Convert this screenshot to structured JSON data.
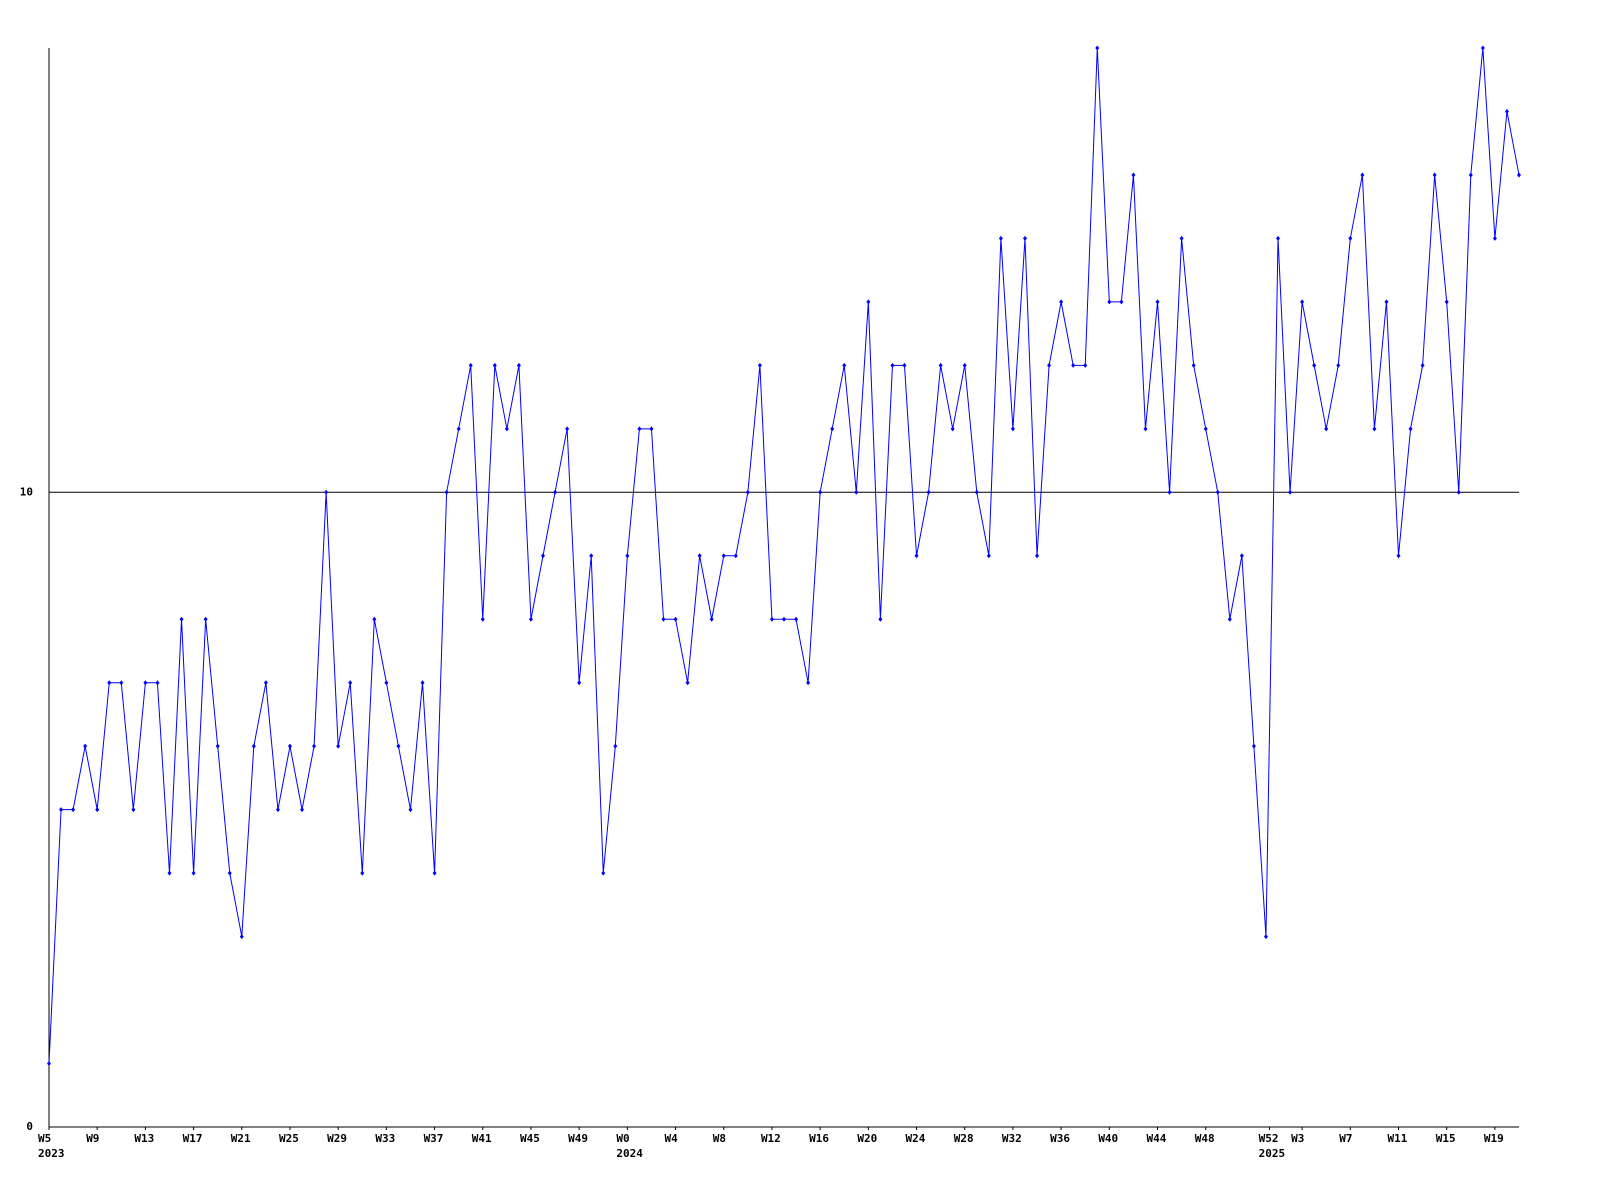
{
  "chart_data": {
    "type": "line",
    "x": [
      0,
      1,
      2,
      3,
      4,
      5,
      6,
      7,
      8,
      9,
      10,
      11,
      12,
      13,
      14,
      15,
      16,
      17,
      18,
      19,
      20,
      21,
      22,
      23,
      24,
      25,
      26,
      27,
      28,
      29,
      30,
      31,
      32,
      33,
      34,
      35,
      36,
      37,
      38,
      39,
      40,
      41,
      42,
      43,
      44,
      45,
      46,
      47,
      48,
      49,
      50,
      51,
      52,
      53,
      54,
      55,
      56,
      57,
      58,
      59,
      60,
      61,
      62,
      63,
      64,
      65,
      66,
      67,
      68,
      69,
      70,
      71,
      72,
      73,
      74,
      75,
      76,
      77,
      78,
      79,
      80,
      81,
      82,
      83,
      84,
      85,
      86,
      87,
      88,
      89,
      90,
      91,
      92,
      93,
      94,
      95,
      96,
      97,
      98,
      99,
      100,
      101,
      102,
      103,
      104,
      105,
      106,
      107,
      108,
      109,
      110,
      111,
      112,
      113,
      114,
      115,
      116,
      117,
      118,
      119,
      120,
      121,
      122
    ],
    "series": [
      {
        "color": "#0000ff",
        "values": [
          1,
          5,
          5,
          6,
          5,
          7,
          7,
          5,
          7,
          7,
          4,
          8,
          4,
          8,
          6,
          4,
          3,
          6,
          7,
          5,
          6,
          5,
          6,
          10,
          6,
          7,
          4,
          8,
          7,
          6,
          5,
          7,
          4,
          10,
          11,
          12,
          8,
          12,
          11,
          12,
          8,
          9,
          10,
          11,
          7,
          9,
          4,
          6,
          9,
          11,
          11,
          8,
          8,
          7,
          9,
          8,
          9,
          9,
          10,
          12,
          8,
          8,
          8,
          7,
          10,
          11,
          12,
          10,
          13,
          8,
          12,
          12,
          9,
          10,
          12,
          11,
          12,
          10,
          9,
          14,
          11,
          14,
          9,
          12,
          13,
          12,
          12,
          17,
          13,
          13,
          15,
          11,
          13,
          10,
          14,
          12,
          11,
          10,
          8,
          9,
          6,
          3,
          14,
          10,
          13,
          12,
          11,
          12,
          14,
          15,
          11,
          13,
          9,
          11,
          12,
          15,
          13,
          10,
          15,
          17,
          14,
          16,
          15
        ]
      }
    ],
    "xlim": [
      0,
      122
    ],
    "xticks": [
      {
        "value": 0,
        "label": "W5"
      },
      {
        "value": 4,
        "label": "W9"
      },
      {
        "value": 8,
        "label": "W13"
      },
      {
        "value": 12,
        "label": "W17"
      },
      {
        "value": 16,
        "label": "W21"
      },
      {
        "value": 20,
        "label": "W25"
      },
      {
        "value": 24,
        "label": "W29"
      },
      {
        "value": 28,
        "label": "W33"
      },
      {
        "value": 32,
        "label": "W37"
      },
      {
        "value": 36,
        "label": "W41"
      },
      {
        "value": 40,
        "label": "W45"
      },
      {
        "value": 44,
        "label": "W49"
      },
      {
        "value": 48,
        "label": "W0"
      },
      {
        "value": 52,
        "label": "W4"
      },
      {
        "value": 56,
        "label": "W8"
      },
      {
        "value": 60,
        "label": "W12"
      },
      {
        "value": 64,
        "label": "W16"
      },
      {
        "value": 68,
        "label": "W20"
      },
      {
        "value": 72,
        "label": "W24"
      },
      {
        "value": 76,
        "label": "W28"
      },
      {
        "value": 80,
        "label": "W32"
      },
      {
        "value": 84,
        "label": "W36"
      },
      {
        "value": 88,
        "label": "W40"
      },
      {
        "value": 92,
        "label": "W44"
      },
      {
        "value": 96,
        "label": "W48"
      },
      {
        "value": 101.3,
        "label": "W52"
      },
      {
        "value": 104,
        "label": "W3"
      },
      {
        "value": 108,
        "label": "W7"
      },
      {
        "value": 112,
        "label": "W11"
      },
      {
        "value": 116,
        "label": "W15"
      },
      {
        "value": 120,
        "label": "W19"
      }
    ],
    "year_labels": [
      {
        "value": 0,
        "label": "2023"
      },
      {
        "value": 48,
        "label": "2024"
      },
      {
        "value": 101.3,
        "label": "2025"
      }
    ],
    "ylim": [
      0,
      17
    ],
    "yticks": [
      0,
      10
    ],
    "grid": true
  }
}
